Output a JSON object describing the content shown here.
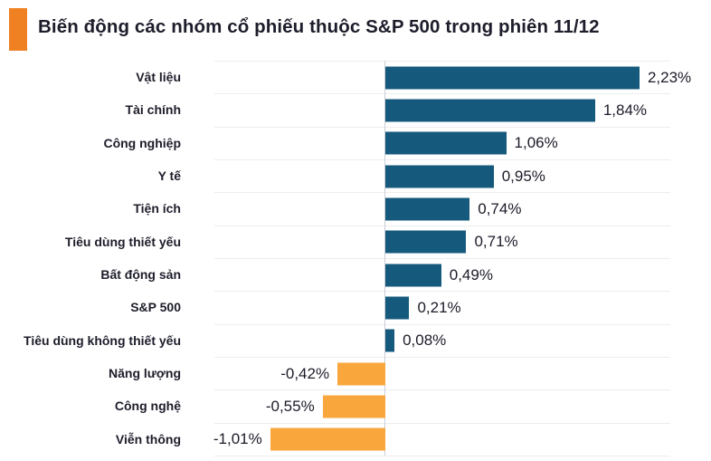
{
  "header": {
    "title": "Biến động các nhóm cổ phiếu thuộc S&P 500 trong phiên 11/12",
    "accent_color": "#ef8122"
  },
  "chart_data": {
    "type": "bar",
    "orientation": "horizontal",
    "title": "Biến động các nhóm cổ phiếu thuộc S&P 500 trong phiên 11/12",
    "categories": [
      "Vật liệu",
      "Tài chính",
      "Công nghiệp",
      "Y tế",
      "Tiện ích",
      "Tiêu dùng thiết yếu",
      "Bất động sản",
      "S&P 500",
      "Tiêu dùng không thiết yếu",
      "Năng lượng",
      "Công nghệ",
      "Viễn thông"
    ],
    "values": [
      2.23,
      1.84,
      1.06,
      0.95,
      0.74,
      0.71,
      0.49,
      0.21,
      0.08,
      -0.42,
      -0.55,
      -1.01
    ],
    "value_labels": [
      "2,23%",
      "1,84%",
      "1,06%",
      "0,95%",
      "0,74%",
      "0,71%",
      "0,49%",
      "0,21%",
      "0,08%",
      "-0,42%",
      "-0,55%",
      "-1,01%"
    ],
    "xlabel": "",
    "ylabel": "",
    "xlim": [
      -1.5,
      2.5
    ],
    "grid": true,
    "legend": false,
    "positive_color": "#155a7c",
    "negative_color": "#f9a63d",
    "gridline_color": "#ededed",
    "zero_line_color": "#c9cdd5"
  }
}
